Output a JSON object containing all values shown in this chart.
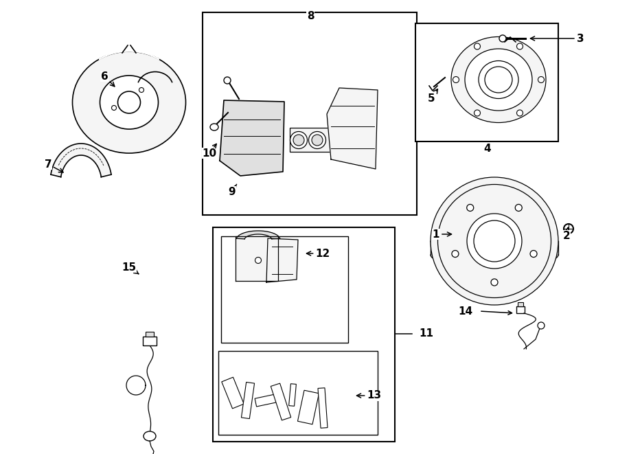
{
  "bg_color": "#ffffff",
  "line_color": "#000000",
  "fig_width": 9.0,
  "fig_height": 6.61,
  "dpi": 100,
  "gray_fill": "#e0e0e0",
  "light_fill": "#f5f5f5"
}
